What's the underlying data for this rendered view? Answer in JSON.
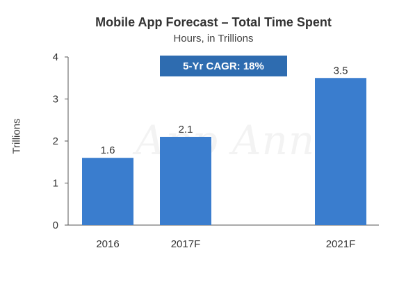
{
  "chart_data": {
    "type": "bar",
    "title": "Mobile App Forecast – Total Time Spent",
    "subtitle": "Hours, in Trillions",
    "ylabel": "Trillions",
    "xlabel": "",
    "categories": [
      "2016",
      "2017F",
      "2021F"
    ],
    "values": [
      1.6,
      2.1,
      3.5
    ],
    "value_labels": [
      "1.6",
      "2.1",
      "3.5"
    ],
    "ylim": [
      0,
      4
    ],
    "yticks": [
      0,
      1,
      2,
      3,
      4
    ],
    "bar_color": "#3a7dce",
    "grid": false,
    "annotation": "5-Yr CAGR: 18%",
    "annotation_color": "#2e6cb0",
    "watermark": "App Annie"
  }
}
